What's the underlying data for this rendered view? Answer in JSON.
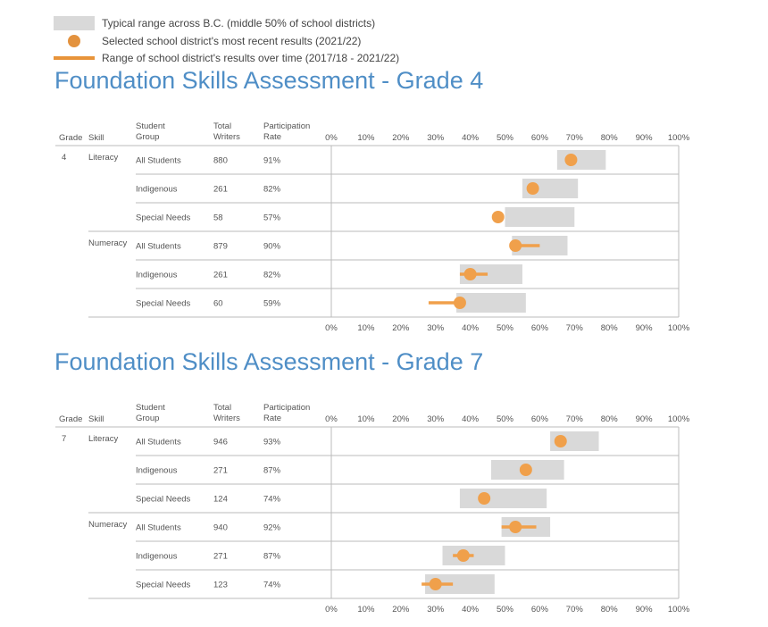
{
  "legend": {
    "range_label": "Typical range across B.C. (middle 50% of school districts)",
    "recent_label": "Selected school district's most recent results (2021/22)",
    "overtime_label": "Range of school district's results over time (2017/18 - 2021/22)"
  },
  "colors": {
    "title": "#4f8ec6",
    "range_box": "#d9d9d9",
    "dot": "#f0a04b",
    "line": "#f0a04b",
    "grid": "#bbbbbb",
    "text": "#555555"
  },
  "chart_data": [
    {
      "type": "range-dot",
      "title": "Foundation Skills Assessment - Grade 4",
      "column_headers": {
        "grade": "Grade",
        "skill": "Skill",
        "group_l1": "Student",
        "group_l2": "Group",
        "writers_l1": "Total",
        "writers_l2": "Writers",
        "rate_l1": "Participation",
        "rate_l2": "Rate"
      },
      "grade": "4",
      "xlim": [
        0,
        100
      ],
      "ticks": [
        "0%",
        "10%",
        "20%",
        "30%",
        "40%",
        "50%",
        "60%",
        "70%",
        "80%",
        "90%",
        "100%"
      ],
      "rows": [
        {
          "skill": "Literacy",
          "group": "All Students",
          "writers": "880",
          "rate": "91%",
          "range": [
            65,
            79
          ],
          "value": 69,
          "over_time": null
        },
        {
          "skill": "",
          "group": "Indigenous",
          "writers": "261",
          "rate": "82%",
          "range": [
            55,
            71
          ],
          "value": 58,
          "over_time": null
        },
        {
          "skill": "",
          "group": "Special Needs",
          "writers": "58",
          "rate": "57%",
          "range": [
            50,
            70
          ],
          "value": 48,
          "over_time": null
        },
        {
          "skill": "Numeracy",
          "group": "All Students",
          "writers": "879",
          "rate": "90%",
          "range": [
            52,
            68
          ],
          "value": 53,
          "over_time": [
            52,
            60
          ]
        },
        {
          "skill": "",
          "group": "Indigenous",
          "writers": "261",
          "rate": "82%",
          "range": [
            37,
            55
          ],
          "value": 40,
          "over_time": [
            37,
            45
          ]
        },
        {
          "skill": "",
          "group": "Special Needs",
          "writers": "60",
          "rate": "59%",
          "range": [
            36,
            56
          ],
          "value": 37,
          "over_time": [
            28,
            37
          ]
        }
      ]
    },
    {
      "type": "range-dot",
      "title": "Foundation Skills Assessment - Grade 7",
      "column_headers": {
        "grade": "Grade",
        "skill": "Skill",
        "group_l1": "Student",
        "group_l2": "Group",
        "writers_l1": "Total",
        "writers_l2": "Writers",
        "rate_l1": "Participation",
        "rate_l2": "Rate"
      },
      "grade": "7",
      "xlim": [
        0,
        100
      ],
      "ticks": [
        "0%",
        "10%",
        "20%",
        "30%",
        "40%",
        "50%",
        "60%",
        "70%",
        "80%",
        "90%",
        "100%"
      ],
      "rows": [
        {
          "skill": "Literacy",
          "group": "All Students",
          "writers": "946",
          "rate": "93%",
          "range": [
            63,
            77
          ],
          "value": 66,
          "over_time": null
        },
        {
          "skill": "",
          "group": "Indigenous",
          "writers": "271",
          "rate": "87%",
          "range": [
            46,
            67
          ],
          "value": 56,
          "over_time": null
        },
        {
          "skill": "",
          "group": "Special Needs",
          "writers": "124",
          "rate": "74%",
          "range": [
            37,
            62
          ],
          "value": 44,
          "over_time": null
        },
        {
          "skill": "Numeracy",
          "group": "All Students",
          "writers": "940",
          "rate": "92%",
          "range": [
            49,
            63
          ],
          "value": 53,
          "over_time": [
            49,
            59
          ]
        },
        {
          "skill": "",
          "group": "Indigenous",
          "writers": "271",
          "rate": "87%",
          "range": [
            32,
            50
          ],
          "value": 38,
          "over_time": [
            35,
            41
          ]
        },
        {
          "skill": "",
          "group": "Special Needs",
          "writers": "123",
          "rate": "74%",
          "range": [
            27,
            47
          ],
          "value": 30,
          "over_time": [
            26,
            35
          ]
        }
      ]
    }
  ]
}
